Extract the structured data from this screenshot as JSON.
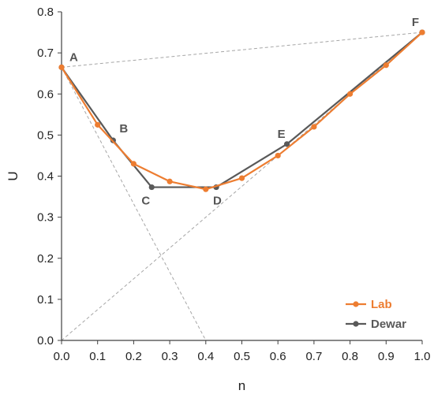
{
  "chart_data": {
    "type": "line",
    "xlabel": "n",
    "ylabel": "U",
    "xlim": [
      0,
      1
    ],
    "ylim": [
      0,
      0.8
    ],
    "xticks": [
      "0.0",
      "0.1",
      "0.2",
      "0.3",
      "0.4",
      "0.5",
      "0.6",
      "0.7",
      "0.8",
      "0.9",
      "1.0"
    ],
    "yticks": [
      "0.0",
      "0.1",
      "0.2",
      "0.3",
      "0.4",
      "0.5",
      "0.6",
      "0.7",
      "0.8"
    ],
    "grid": false,
    "legend_position": "bottom-right",
    "series": [
      {
        "name": "Lab",
        "color": "#ED7D31",
        "x": [
          0.0,
          0.1,
          0.2,
          0.3,
          0.4,
          0.5,
          0.6,
          0.7,
          0.8,
          0.9,
          1.0
        ],
        "y": [
          0.665,
          0.525,
          0.43,
          0.387,
          0.368,
          0.395,
          0.45,
          0.52,
          0.6,
          0.67,
          0.75
        ]
      },
      {
        "name": "Dewar",
        "color": "#595959",
        "x": [
          0.0,
          0.143,
          0.25,
          0.429,
          0.625,
          1.0
        ],
        "y": [
          0.665,
          0.487,
          0.373,
          0.373,
          0.478,
          0.75
        ]
      }
    ],
    "point_labels": [
      {
        "text": "A",
        "x": 0.0,
        "y": 0.665
      },
      {
        "text": "B",
        "x": 0.143,
        "y": 0.487
      },
      {
        "text": "C",
        "x": 0.25,
        "y": 0.373
      },
      {
        "text": "D",
        "x": 0.429,
        "y": 0.373
      },
      {
        "text": "E",
        "x": 0.625,
        "y": 0.478
      },
      {
        "text": "F",
        "x": 1.0,
        "y": 0.75
      }
    ],
    "reference_lines": [
      {
        "from": [
          0.0,
          0.665
        ],
        "to": [
          1.0,
          0.75
        ]
      },
      {
        "from": [
          0.0,
          0.665
        ],
        "to": [
          0.4,
          0.0
        ]
      },
      {
        "from": [
          0.0,
          0.0
        ],
        "to": [
          1.0,
          0.75
        ]
      }
    ],
    "reference_color": "#A6A6A6",
    "axis_color": "#404040"
  }
}
